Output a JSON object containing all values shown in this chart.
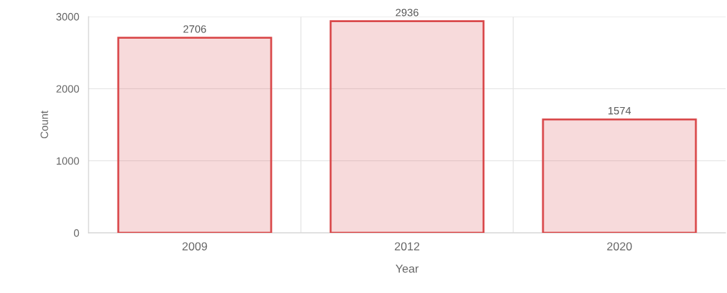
{
  "chart_data": {
    "type": "bar",
    "xlabel": "Year",
    "ylabel": "Count",
    "categories": [
      "2009",
      "2012",
      "2020"
    ],
    "series": [
      {
        "color": "#d9484a",
        "values": [
          2706,
          2936,
          1574
        ]
      }
    ],
    "ylim": [
      0,
      3000
    ],
    "yticks": [
      0,
      1000,
      2000,
      3000
    ],
    "grid": true,
    "data_labels": true
  }
}
